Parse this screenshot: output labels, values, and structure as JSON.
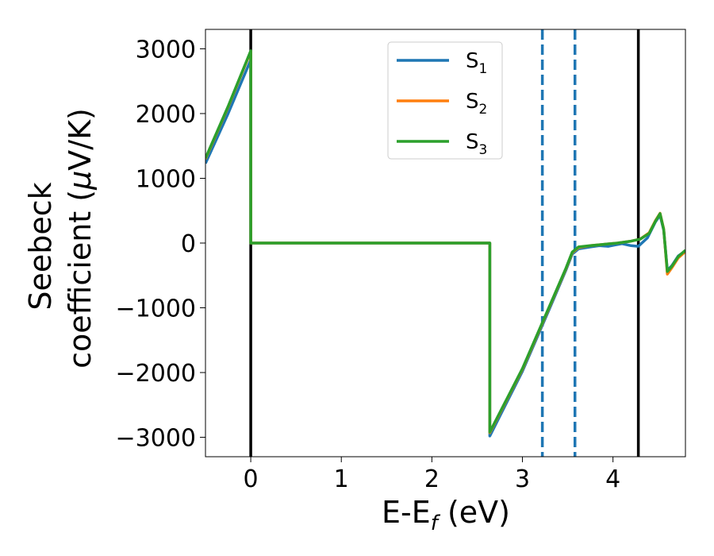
{
  "chart_data": {
    "type": "line",
    "xlabel": "E-E",
    "xlabel_sub": "f",
    "xlabel_unit": " (eV)",
    "ylabel_line1": "Seebeck",
    "ylabel_line2_prefix": "coefficient  (",
    "ylabel_mu": "μ",
    "ylabel_line2_suffix": "V/K)",
    "xlim": [
      -0.5,
      4.8
    ],
    "ylim": [
      -3300,
      3300
    ],
    "xticks": [
      0,
      1,
      2,
      3,
      4
    ],
    "xtick_labels": [
      "0",
      "1",
      "2",
      "3",
      "4"
    ],
    "yticks": [
      3000,
      2000,
      1000,
      0,
      -1000,
      -2000,
      -3000
    ],
    "ytick_labels": [
      "3000",
      "2000",
      "1000",
      "0",
      "−1000",
      "−2000",
      "−3000"
    ],
    "grid": false,
    "legend_position": "top-center",
    "vlines": [
      {
        "x": 0.0,
        "style": "solid",
        "color": "#000000"
      },
      {
        "x": 4.28,
        "style": "solid",
        "color": "#000000"
      },
      {
        "x": 3.22,
        "style": "dashed",
        "color": "#1f77b4"
      },
      {
        "x": 3.58,
        "style": "dashed",
        "color": "#1f77b4"
      }
    ],
    "series": [
      {
        "name": "S",
        "sub": "1",
        "color": "#1f77b4",
        "points": [
          [
            -0.5,
            1230
          ],
          [
            -0.25,
            2000
          ],
          [
            0.0,
            2830
          ],
          [
            0.0,
            0
          ],
          [
            2.64,
            0
          ],
          [
            2.64,
            -2980
          ],
          [
            3.0,
            -1980
          ],
          [
            3.3,
            -1010
          ],
          [
            3.48,
            -420
          ],
          [
            3.55,
            -170
          ],
          [
            3.62,
            -90
          ],
          [
            3.75,
            -60
          ],
          [
            3.85,
            -40
          ],
          [
            3.95,
            -50
          ],
          [
            4.02,
            -30
          ],
          [
            4.1,
            -10
          ],
          [
            4.2,
            -40
          ],
          [
            4.28,
            -50
          ],
          [
            4.38,
            80
          ],
          [
            4.47,
            330
          ],
          [
            4.52,
            430
          ],
          [
            4.56,
            200
          ],
          [
            4.6,
            -420
          ],
          [
            4.65,
            -350
          ],
          [
            4.72,
            -200
          ],
          [
            4.8,
            -120
          ]
        ]
      },
      {
        "name": "S",
        "sub": "2",
        "color": "#ff7f0e",
        "points": [
          [
            -0.5,
            1300
          ],
          [
            -0.25,
            2100
          ],
          [
            0.0,
            2960
          ],
          [
            0.0,
            0
          ],
          [
            2.64,
            0
          ],
          [
            2.64,
            -2930
          ],
          [
            3.0,
            -1950
          ],
          [
            3.3,
            -980
          ],
          [
            3.48,
            -400
          ],
          [
            3.55,
            -150
          ],
          [
            3.62,
            -70
          ],
          [
            3.75,
            -40
          ],
          [
            3.9,
            -20
          ],
          [
            4.05,
            0
          ],
          [
            4.2,
            30
          ],
          [
            4.3,
            60
          ],
          [
            4.4,
            160
          ],
          [
            4.47,
            350
          ],
          [
            4.52,
            460
          ],
          [
            4.56,
            220
          ],
          [
            4.6,
            -480
          ],
          [
            4.65,
            -380
          ],
          [
            4.72,
            -230
          ],
          [
            4.8,
            -130
          ]
        ]
      },
      {
        "name": "S",
        "sub": "3",
        "color": "#2ca02c",
        "points": [
          [
            -0.5,
            1310
          ],
          [
            -0.25,
            2110
          ],
          [
            0.0,
            2970
          ],
          [
            0.0,
            0
          ],
          [
            2.64,
            0
          ],
          [
            2.64,
            -2920
          ],
          [
            3.0,
            -1940
          ],
          [
            3.3,
            -970
          ],
          [
            3.48,
            -390
          ],
          [
            3.55,
            -140
          ],
          [
            3.62,
            -60
          ],
          [
            3.75,
            -40
          ],
          [
            3.9,
            -20
          ],
          [
            4.05,
            0
          ],
          [
            4.2,
            30
          ],
          [
            4.3,
            60
          ],
          [
            4.4,
            150
          ],
          [
            4.47,
            340
          ],
          [
            4.52,
            455
          ],
          [
            4.56,
            210
          ],
          [
            4.6,
            -440
          ],
          [
            4.65,
            -360
          ],
          [
            4.72,
            -210
          ],
          [
            4.8,
            -110
          ]
        ]
      }
    ]
  }
}
